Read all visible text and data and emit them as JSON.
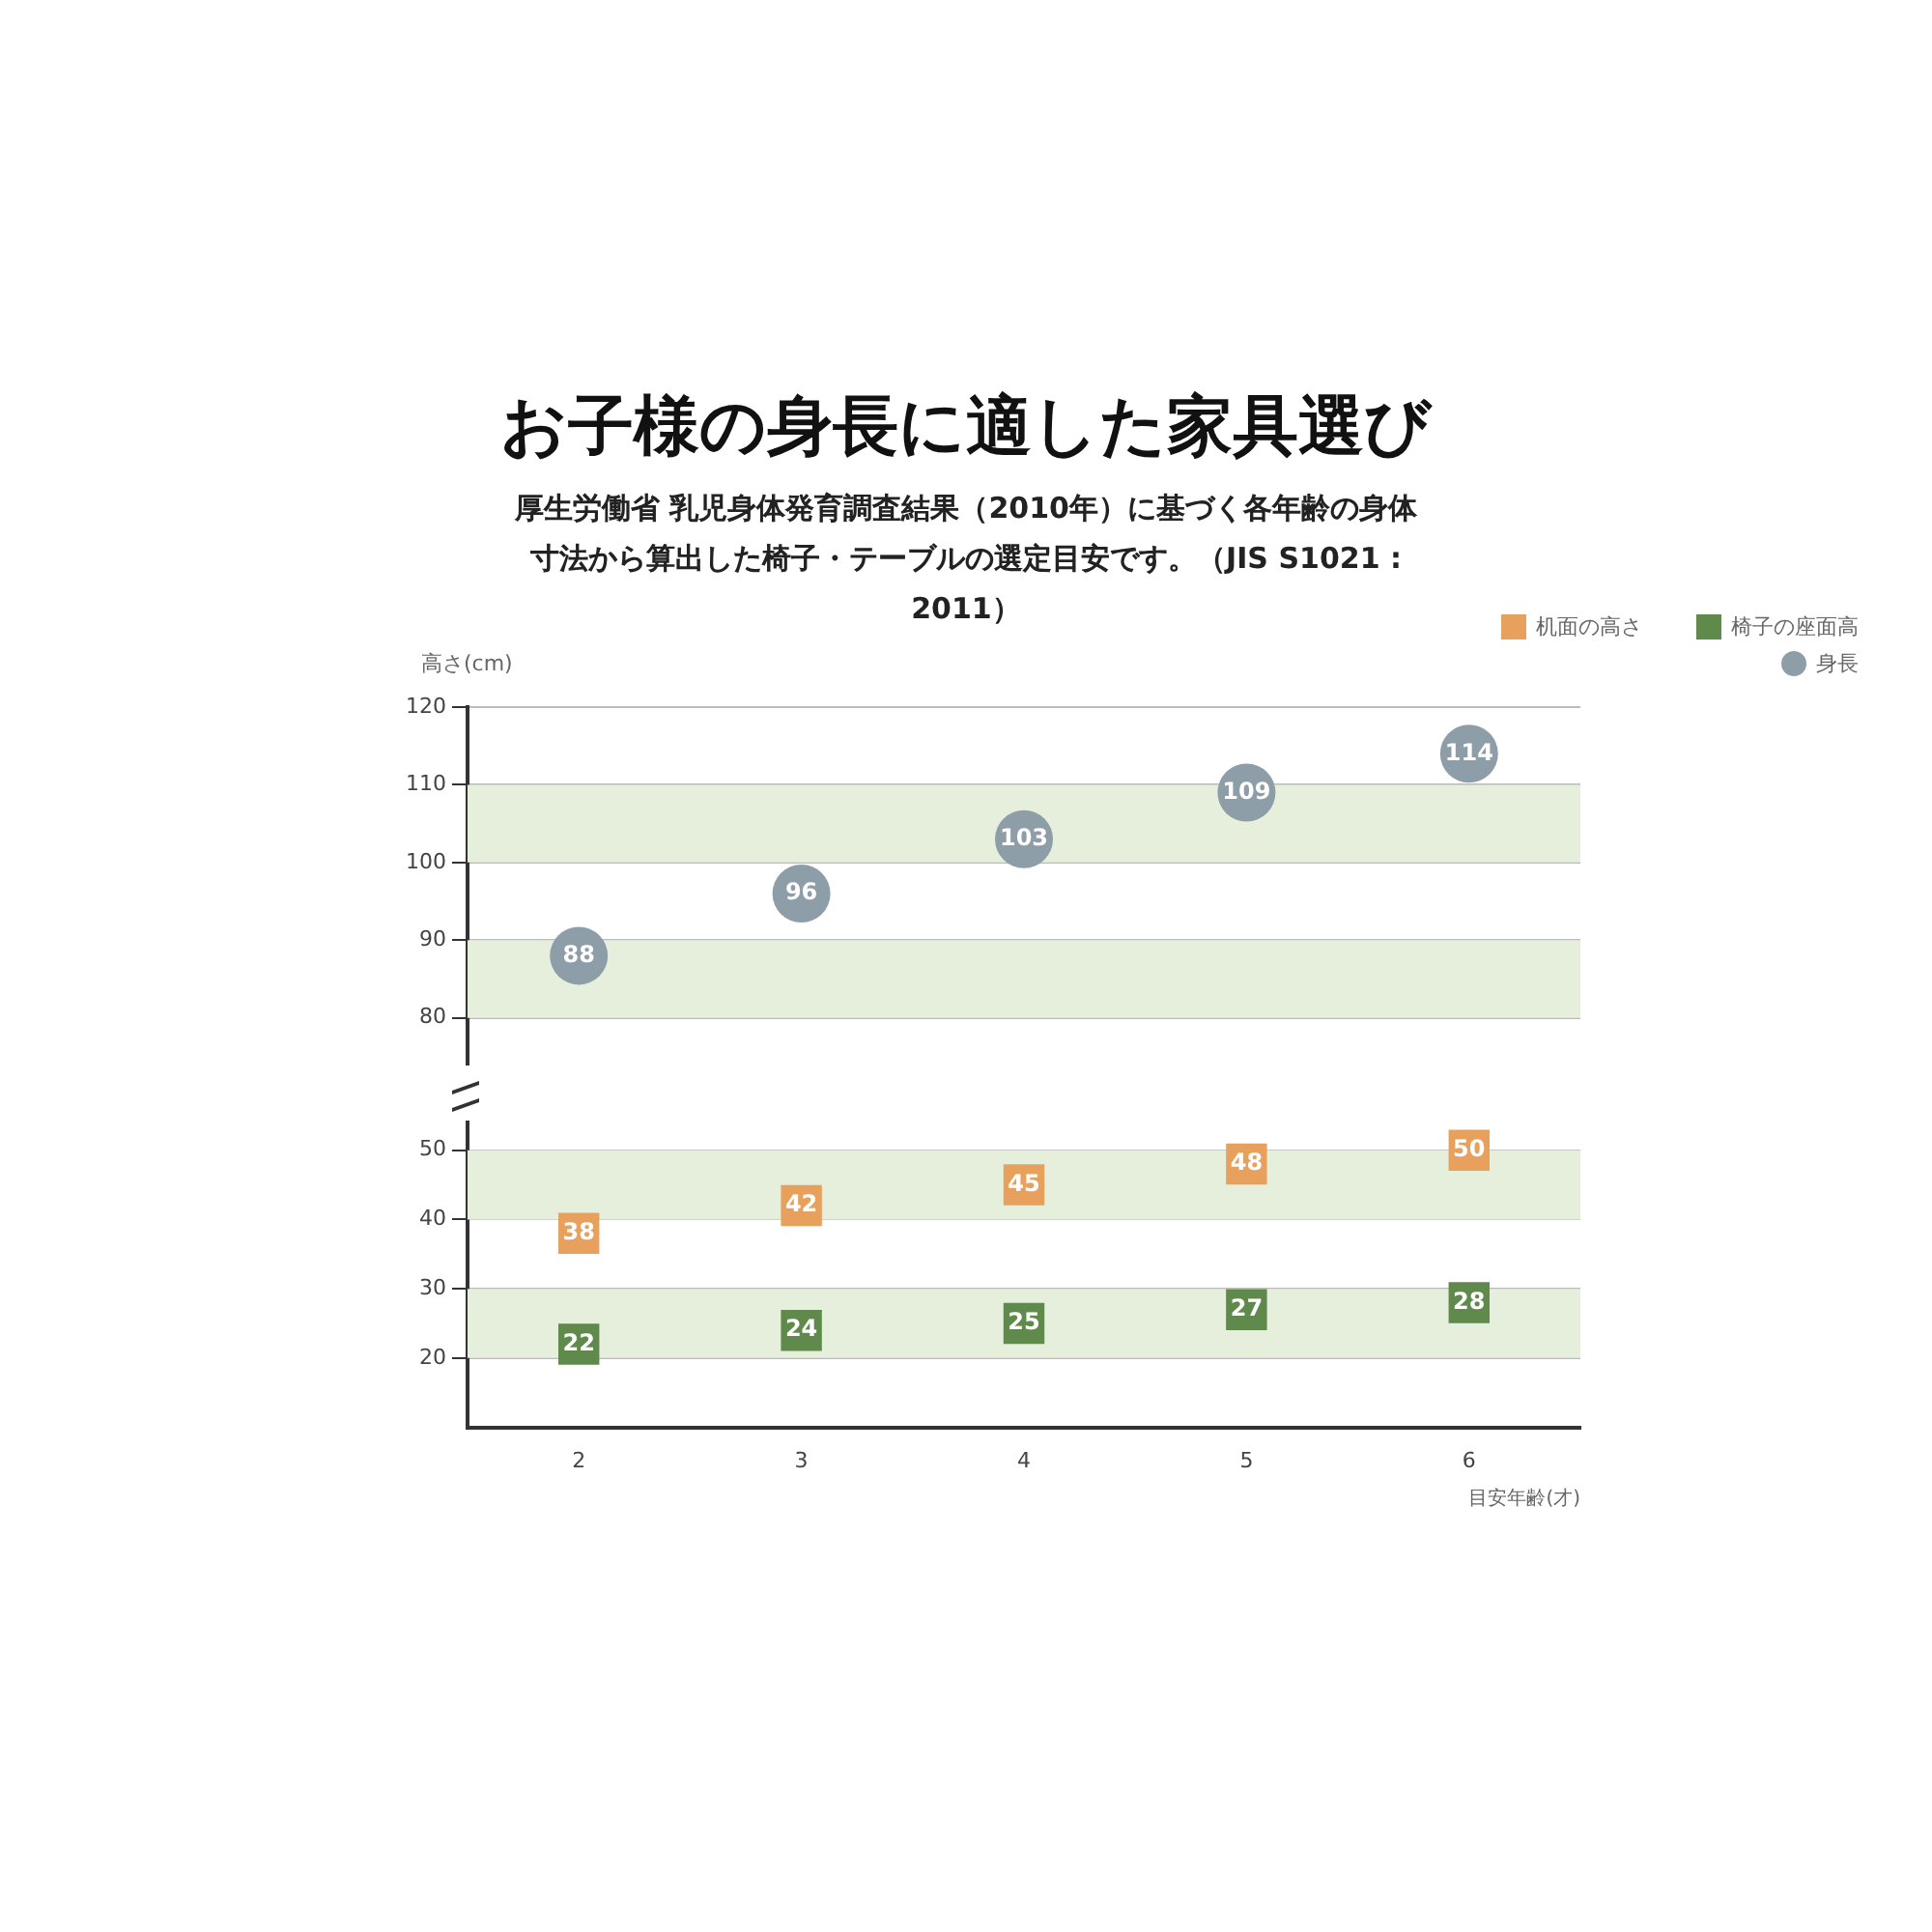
{
  "chart_data": [
    {
      "type": "scatter",
      "title": "お子様の身長に適した家具選び",
      "subtitle": "厚生労働省 乳児身体発育調査結果（2010年）に基づく各年齢の身体寸法から算出した椅子・テーブルの選定目安です。（JIS S1021 : 2011）",
      "ylabel": "高さ(cm)",
      "categories": [
        "2",
        "3",
        "4",
        "5",
        "6"
      ],
      "series": [
        {
          "name": "身長",
          "color": "#8e9ea9",
          "marker": "circle",
          "values": [
            88,
            96,
            103,
            109,
            114
          ]
        }
      ],
      "ylim": [
        74,
        120
      ],
      "yticks": [
        80,
        90,
        100,
        110,
        120
      ],
      "grid": "y",
      "legend": "top right",
      "data_labels": true,
      "tick_labels": "y",
      "bands": [
        {
          "axis": "y",
          "from": 80,
          "to": 90,
          "color": "#e6efdc"
        },
        {
          "axis": "y",
          "from": 100,
          "to": 110,
          "color": "#e6efdc"
        }
      ]
    },
    {
      "type": "scatter",
      "xlabel": "目安年齢(才)",
      "categories": [
        "2",
        "3",
        "4",
        "5",
        "6"
      ],
      "series": [
        {
          "name": "机面の高さ",
          "color": "#e8a15c",
          "marker": "square",
          "values": [
            38,
            42,
            45,
            48,
            50
          ]
        },
        {
          "name": "椅子の座面高",
          "color": "#5f8a4c",
          "marker": "square",
          "values": [
            22,
            24,
            25,
            27,
            28
          ]
        }
      ],
      "ylim": [
        10,
        54
      ],
      "yticks": [
        20,
        30,
        40,
        50
      ],
      "grid": "y",
      "legend": "top right",
      "data_labels": true,
      "bands": [
        {
          "axis": "y",
          "from": 20,
          "to": 30,
          "color": "#e6efdc"
        },
        {
          "axis": "y",
          "from": 40,
          "to": 50,
          "color": "#e6efdc"
        }
      ]
    }
  ]
}
